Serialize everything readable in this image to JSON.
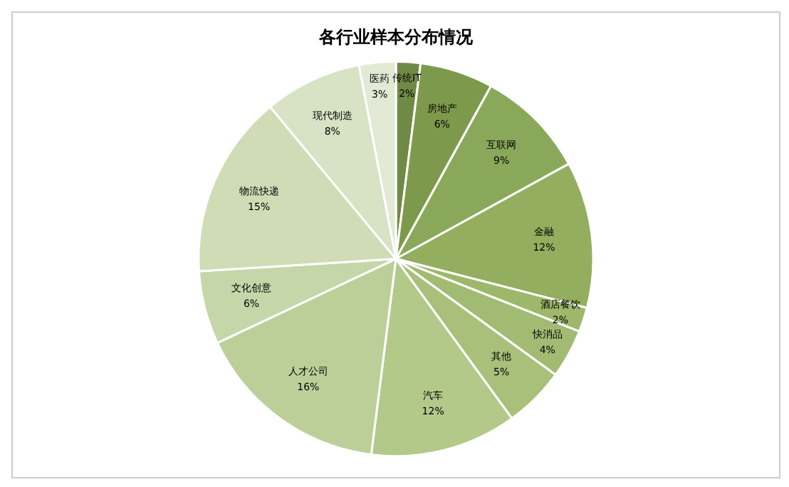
{
  "chart_data": {
    "type": "pie",
    "title": "各行业样本分布情况",
    "categories": [
      "传统IT",
      "房地产",
      "互联网",
      "金融",
      "酒店餐饮",
      "快消品",
      "其他",
      "汽车",
      "人才公司",
      "文化创意",
      "物流快递",
      "现代制造",
      "医药"
    ],
    "values": [
      2,
      6,
      9,
      12,
      2,
      4,
      5,
      12,
      16,
      6,
      15,
      8,
      3
    ],
    "value_labels": [
      "2%",
      "6%",
      "9%",
      "12%",
      "2%",
      "4%",
      "5%",
      "12%",
      "16%",
      "6%",
      "15%",
      "8%",
      "3%"
    ],
    "colors": [
      "#6f8a45",
      "#7d9a4c",
      "#8aa85a",
      "#93ae5e",
      "#9db86a",
      "#a2bb72",
      "#a8c07a",
      "#b3c98a",
      "#bccf98",
      "#c5d6a8",
      "#cfdcb5",
      "#d8e2c5",
      "#e2e9d4"
    ],
    "legend": false
  }
}
